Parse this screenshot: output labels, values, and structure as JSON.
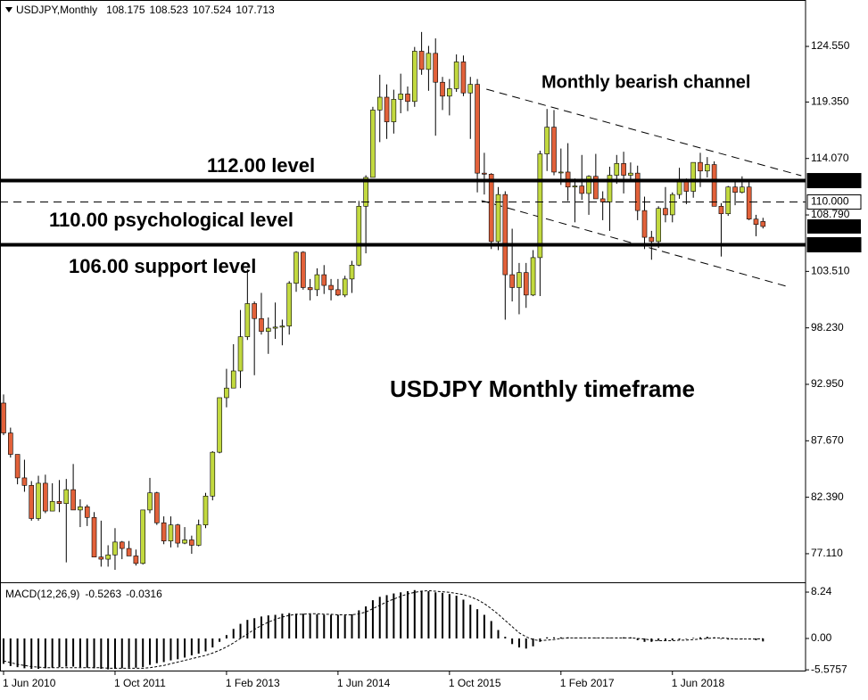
{
  "chart_data": [
    {
      "type": "candlestick",
      "title": "USDJPY,Monthly",
      "up_color": "#c2d93f",
      "down_color": "#e2613a",
      "categories": [
        "1 Jun 2010",
        null,
        null,
        null,
        null,
        null,
        null,
        null,
        null,
        null,
        null,
        null,
        null,
        null,
        null,
        null,
        "1 Oct 2011",
        null,
        null,
        null,
        null,
        null,
        null,
        null,
        null,
        null,
        null,
        null,
        null,
        null,
        null,
        null,
        "1 Feb 2013",
        null,
        null,
        null,
        null,
        null,
        null,
        null,
        null,
        null,
        null,
        null,
        null,
        null,
        null,
        null,
        "1 Jun 2014",
        null,
        null,
        null,
        null,
        null,
        null,
        null,
        null,
        null,
        null,
        null,
        null,
        null,
        null,
        null,
        "1 Oct 2015",
        null,
        null,
        null,
        null,
        null,
        null,
        null,
        null,
        null,
        null,
        null,
        null,
        null,
        null,
        null,
        "1 Feb 2017",
        null,
        null,
        null,
        null,
        null,
        null,
        null,
        null,
        null,
        null,
        null,
        null,
        null,
        null,
        null,
        "1 Jun 2018",
        null,
        null,
        null,
        null,
        null,
        null,
        null,
        null,
        null,
        null,
        null,
        null,
        null
      ],
      "candles": [
        [
          91.2,
          92.0,
          88.2,
          88.4
        ],
        [
          88.4,
          88.9,
          86.1,
          86.4
        ],
        [
          86.4,
          86.4,
          83.6,
          84.2
        ],
        [
          84.2,
          85.9,
          82.9,
          83.5
        ],
        [
          83.5,
          83.9,
          80.2,
          80.4
        ],
        [
          80.4,
          84.4,
          80.2,
          83.7
        ],
        [
          83.7,
          84.5,
          80.9,
          81.1
        ],
        [
          81.1,
          83.7,
          81.1,
          82.0
        ],
        [
          82.0,
          84.0,
          81.0,
          81.8
        ],
        [
          81.8,
          84.1,
          76.3,
          83.1
        ],
        [
          83.1,
          85.5,
          81.2,
          81.2
        ],
        [
          81.2,
          82.2,
          79.6,
          81.5
        ],
        [
          81.5,
          81.7,
          79.7,
          80.5
        ],
        [
          80.5,
          81.0,
          76.8,
          76.8
        ],
        [
          76.8,
          80.2,
          75.9,
          76.6
        ],
        [
          76.6,
          77.9,
          75.9,
          77.0
        ],
        [
          77.0,
          79.5,
          75.6,
          78.2
        ],
        [
          78.2,
          78.3,
          76.6,
          77.6
        ],
        [
          77.6,
          78.3,
          76.9,
          76.9
        ],
        [
          76.9,
          77.5,
          76.0,
          76.2
        ],
        [
          76.2,
          81.2,
          76.1,
          81.2
        ],
        [
          81.2,
          84.2,
          80.9,
          82.8
        ],
        [
          82.8,
          82.9,
          79.8,
          80.0
        ],
        [
          80.0,
          80.6,
          78.0,
          78.3
        ],
        [
          78.3,
          80.6,
          77.7,
          79.8
        ],
        [
          79.8,
          79.9,
          77.7,
          78.1
        ],
        [
          78.1,
          79.6,
          78.0,
          78.4
        ],
        [
          78.4,
          78.8,
          77.1,
          77.9
        ],
        [
          77.9,
          80.3,
          77.8,
          79.8
        ],
        [
          79.8,
          82.8,
          79.5,
          82.5
        ],
        [
          82.5,
          86.7,
          82.1,
          86.6
        ],
        [
          86.6,
          91.7,
          86.5,
          91.7
        ],
        [
          91.7,
          94.4,
          90.8,
          92.6
        ],
        [
          92.6,
          96.7,
          92.6,
          94.2
        ],
        [
          94.2,
          99.9,
          92.6,
          97.4
        ],
        [
          97.4,
          103.7,
          97.1,
          100.5
        ],
        [
          100.5,
          100.7,
          93.8,
          99.1
        ],
        [
          99.1,
          101.5,
          97.6,
          97.9
        ],
        [
          97.9,
          99.2,
          95.8,
          98.2
        ],
        [
          98.2,
          100.6,
          97.2,
          98.3
        ],
        [
          98.3,
          99.0,
          96.6,
          98.4
        ],
        [
          98.4,
          102.6,
          97.6,
          102.4
        ],
        [
          102.4,
          105.4,
          101.6,
          105.3
        ],
        [
          105.3,
          105.4,
          101.8,
          102.0
        ],
        [
          102.0,
          102.8,
          100.8,
          101.8
        ],
        [
          101.8,
          103.8,
          101.2,
          103.2
        ],
        [
          103.2,
          104.1,
          101.4,
          102.2
        ],
        [
          102.2,
          102.8,
          100.8,
          101.8
        ],
        [
          101.8,
          102.8,
          101.2,
          101.3
        ],
        [
          101.3,
          103.1,
          101.1,
          102.8
        ],
        [
          102.8,
          104.5,
          101.5,
          104.1
        ],
        [
          104.1,
          110.1,
          104.0,
          109.6
        ],
        [
          109.6,
          112.5,
          105.2,
          112.3
        ],
        [
          112.3,
          118.9,
          112.3,
          118.6
        ],
        [
          118.6,
          121.9,
          115.6,
          119.8
        ],
        [
          119.8,
          121.0,
          115.9,
          117.5
        ],
        [
          117.5,
          120.5,
          116.4,
          119.6
        ],
        [
          119.6,
          122.0,
          118.3,
          120.1
        ],
        [
          120.1,
          120.8,
          118.5,
          119.4
        ],
        [
          119.4,
          124.5,
          118.9,
          124.1
        ],
        [
          124.1,
          125.9,
          121.9,
          122.4
        ],
        [
          122.4,
          124.6,
          120.4,
          123.9
        ],
        [
          123.9,
          125.3,
          116.2,
          121.2
        ],
        [
          121.2,
          121.7,
          118.6,
          119.9
        ],
        [
          119.9,
          121.5,
          118.1,
          120.6
        ],
        [
          120.6,
          123.8,
          120.3,
          123.1
        ],
        [
          123.1,
          123.7,
          119.9,
          120.2
        ],
        [
          120.2,
          121.7,
          115.9,
          121.0
        ],
        [
          121.0,
          121.5,
          110.9,
          112.7
        ],
        [
          112.7,
          114.6,
          110.7,
          112.6
        ],
        [
          112.6,
          112.7,
          105.6,
          106.3
        ],
        [
          106.3,
          111.4,
          105.5,
          110.7
        ],
        [
          110.7,
          111.0,
          99.0,
          103.2
        ],
        [
          103.2,
          107.5,
          100.7,
          102.0
        ],
        [
          102.0,
          104.3,
          99.5,
          103.4
        ],
        [
          103.4,
          104.3,
          100.1,
          101.3
        ],
        [
          101.3,
          105.5,
          101.2,
          104.8
        ],
        [
          104.8,
          114.8,
          101.2,
          114.5
        ],
        [
          114.5,
          118.7,
          112.9,
          117.0
        ],
        [
          117.0,
          118.6,
          112.5,
          112.8
        ],
        [
          112.8,
          115.0,
          111.6,
          112.8
        ],
        [
          112.8,
          115.5,
          110.1,
          111.4
        ],
        [
          111.4,
          112.2,
          108.1,
          111.5
        ],
        [
          111.5,
          114.4,
          110.2,
          110.8
        ],
        [
          110.8,
          112.5,
          108.8,
          112.4
        ],
        [
          112.4,
          114.5,
          110.6,
          110.3
        ],
        [
          110.3,
          111.0,
          108.3,
          110.0
        ],
        [
          110.0,
          113.3,
          107.3,
          112.5
        ],
        [
          112.5,
          114.4,
          111.7,
          113.6
        ],
        [
          113.6,
          114.7,
          110.8,
          112.5
        ],
        [
          112.5,
          113.7,
          112.0,
          112.7
        ],
        [
          112.7,
          113.4,
          108.3,
          109.2
        ],
        [
          109.2,
          110.5,
          105.6,
          106.7
        ],
        [
          106.7,
          107.3,
          104.6,
          106.3
        ],
        [
          106.3,
          109.6,
          105.7,
          109.4
        ],
        [
          109.4,
          111.4,
          108.1,
          108.8
        ],
        [
          108.8,
          110.9,
          108.1,
          110.7
        ],
        [
          110.7,
          113.2,
          110.3,
          111.9
        ],
        [
          111.9,
          112.2,
          109.8,
          111.0
        ],
        [
          111.0,
          113.7,
          110.4,
          113.7
        ],
        [
          113.7,
          114.6,
          111.4,
          112.9
        ],
        [
          112.9,
          114.2,
          112.3,
          113.5
        ],
        [
          113.5,
          113.8,
          109.6,
          109.6
        ],
        [
          109.6,
          109.9,
          104.9,
          108.9
        ],
        [
          108.9,
          111.5,
          108.7,
          111.4
        ],
        [
          111.4,
          112.1,
          109.7,
          110.9
        ],
        [
          110.9,
          112.4,
          110.8,
          111.4
        ],
        [
          111.4,
          112.0,
          108.3,
          108.4
        ],
        [
          108.4,
          108.8,
          106.8,
          107.9
        ],
        [
          108.175,
          108.523,
          107.524,
          107.713
        ]
      ],
      "ylim": [
        74.52,
        128.89
      ],
      "yticks": [
        {
          "value": 124.55,
          "label": "124.550"
        },
        {
          "value": 119.35,
          "label": "119.350"
        },
        {
          "value": 114.07,
          "label": "114.070"
        },
        {
          "value": 108.79,
          "label": "108.790"
        },
        {
          "value": 103.51,
          "label": "103.510"
        },
        {
          "value": 98.23,
          "label": "98.230"
        },
        {
          "value": 92.95,
          "label": "92.950"
        },
        {
          "value": 87.67,
          "label": "87.670"
        },
        {
          "value": 82.39,
          "label": "82.390"
        },
        {
          "value": 77.11,
          "label": "77.110"
        }
      ],
      "levels": [
        {
          "value": 112,
          "label": "112.000",
          "style": "thick"
        },
        {
          "value": 110,
          "label": "110.000",
          "style": "dashed"
        },
        {
          "value": 106,
          "label": "106.000",
          "style": "thick"
        }
      ],
      "channel": [
        {
          "x": [
            69.3,
            114.5
          ],
          "y": [
            120.55,
            112.46
          ]
        },
        {
          "x": [
            68.6,
            112.8
          ],
          "y": [
            110.13,
            102.04
          ]
        }
      ],
      "annotations": [
        "Monthly bearish channel",
        "112.00 level",
        "110.00 psychological level",
        "106.00 support level",
        "USDJPY Monthly timeframe"
      ]
    },
    {
      "type": "macd",
      "title": "MACD(12,26,9)",
      "histogram": [
        -4.5,
        -4.9,
        -5.1,
        -5.3,
        -5.4,
        -5.4,
        -5.3,
        -5.2,
        -5.1,
        -5.0,
        -5.0,
        -5.1,
        -5.2,
        -5.3,
        -5.4,
        -5.5,
        -5.4,
        -5.3,
        -5.2,
        -5.2,
        -5.1,
        -4.7,
        -4.4,
        -4.2,
        -3.9,
        -3.7,
        -3.4,
        -3.0,
        -2.7,
        -2.3,
        -1.6,
        -0.6,
        0.6,
        1.7,
        2.6,
        3.3,
        3.6,
        3.9,
        4.1,
        4.2,
        4.4,
        4.5,
        4.4,
        4.4,
        4.3,
        4.3,
        4.2,
        4.2,
        4.2,
        4.1,
        4.3,
        5.0,
        5.7,
        6.8,
        7.4,
        7.7,
        8.0,
        8.2,
        8.4,
        8.6,
        8.5,
        8.4,
        8.2,
        8.1,
        7.9,
        7.6,
        6.9,
        6.0,
        5.2,
        4.2,
        3.1,
        1.5,
        0.3,
        -1.0,
        -1.6,
        -1.8,
        -1.4,
        -0.6,
        0.2,
        0.2,
        0.2,
        0.2,
        0.1,
        0.1,
        0.1,
        0.1,
        0.1,
        0.1,
        0.1,
        0.2,
        0.2,
        -0.3,
        -0.6,
        -0.6,
        -0.4,
        -0.3,
        -0.3,
        -0.2,
        -0.1,
        0.1,
        0.2,
        0.3,
        0.2,
        -0.1,
        -0.2,
        -0.1,
        -0.1,
        -0.1,
        -0.3,
        -0.5263
      ],
      "signal": [
        -4.0,
        -4.3,
        -4.6,
        -4.8,
        -5.0,
        -5.1,
        -5.2,
        -5.2,
        -5.2,
        -5.2,
        -5.2,
        -5.2,
        -5.2,
        -5.2,
        -5.2,
        -5.3,
        -5.3,
        -5.3,
        -5.3,
        -5.3,
        -5.3,
        -5.2,
        -5.0,
        -4.8,
        -4.5,
        -4.2,
        -3.9,
        -3.6,
        -3.3,
        -3.0,
        -2.6,
        -2.1,
        -1.5,
        -0.8,
        0.0,
        0.8,
        1.6,
        2.3,
        2.9,
        3.4,
        3.8,
        4.1,
        4.3,
        4.3,
        4.4,
        4.4,
        4.3,
        4.3,
        4.2,
        4.2,
        4.2,
        4.4,
        4.7,
        5.3,
        5.9,
        6.5,
        7.0,
        7.5,
        7.9,
        8.2,
        8.4,
        8.5,
        8.4,
        8.3,
        8.2,
        8.0,
        7.8,
        7.4,
        6.9,
        6.2,
        5.3,
        4.3,
        3.2,
        2.1,
        1.0,
        0.3,
        -0.2,
        -0.4,
        -0.3,
        -0.2,
        0.0,
        0.1,
        0.1,
        0.1,
        0.1,
        0.1,
        0.1,
        0.1,
        0.1,
        0.1,
        0.1,
        0.0,
        -0.1,
        -0.3,
        -0.4,
        -0.4,
        -0.4,
        -0.3,
        -0.3,
        -0.2,
        -0.1,
        0.0,
        0.1,
        0.1,
        0.0,
        -0.1,
        -0.1,
        -0.1,
        -0.1,
        -0.0316
      ],
      "color": "#000000",
      "ylim": [
        -5.71,
        9.67
      ],
      "yticks": [
        8.24,
        {
          "value": 0,
          "label": "0.00"
        },
        -5.5757
      ]
    }
  ]
}
